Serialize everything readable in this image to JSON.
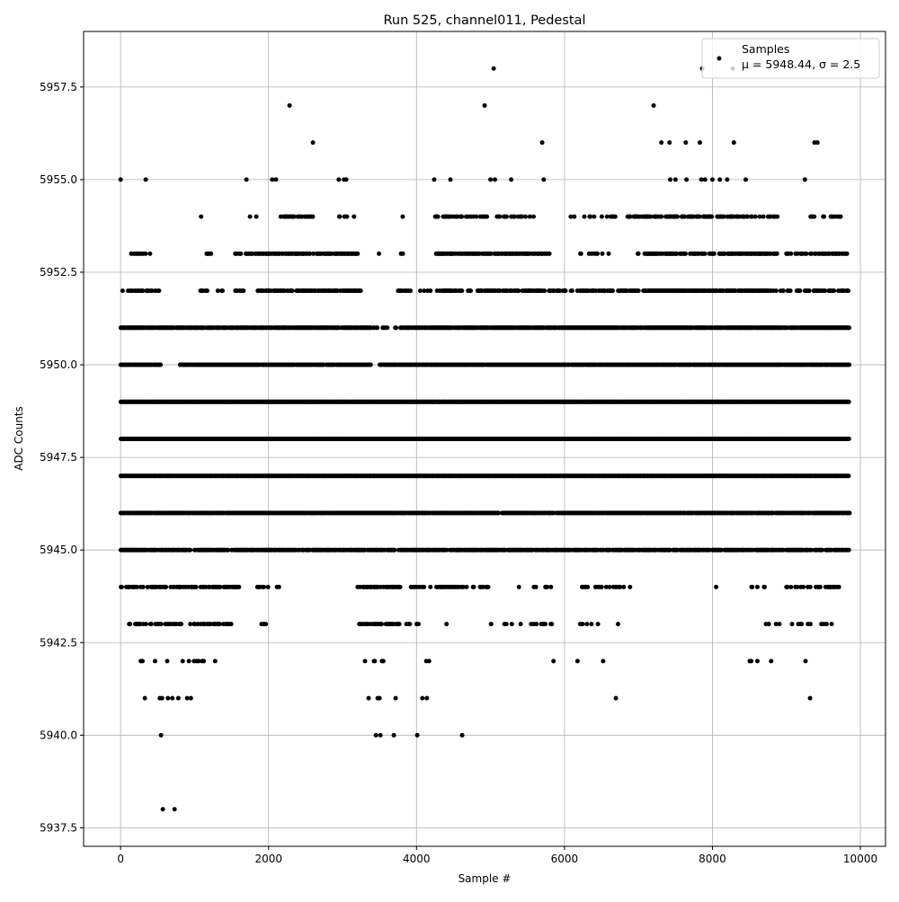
{
  "chart_data": {
    "type": "scatter",
    "title": "Run 525, channel011, Pedestal",
    "xlabel": "Sample #",
    "ylabel": "ADC Counts",
    "xlim": [
      -500,
      10340
    ],
    "ylim": [
      5937.0,
      5959.0
    ],
    "xticks": [
      0,
      2000,
      4000,
      6000,
      8000,
      10000
    ],
    "xtick_labels": [
      "0",
      "2000",
      "4000",
      "6000",
      "8000",
      "10000"
    ],
    "yticks": [
      5937.5,
      5940.0,
      5942.5,
      5945.0,
      5947.5,
      5950.0,
      5952.5,
      5955.0,
      5957.5
    ],
    "ytick_labels": [
      "5937.5",
      "5940.0",
      "5942.5",
      "5945.0",
      "5947.5",
      "5950.0",
      "5952.5",
      "5955.0",
      "5957.5"
    ],
    "grid": true,
    "legend": {
      "position": "top-right",
      "title": "Samples",
      "entry": "μ = 5948.44, σ = 2.5"
    },
    "series_color": "#000000",
    "sample_step": 12,
    "level_segments": [
      {
        "level": 5954,
        "ranges": [
          [
            80,
            320,
            0.1
          ],
          [
            1050,
            1100,
            0.3
          ],
          [
            1700,
            1850,
            0.3
          ],
          [
            2150,
            2600,
            0.6
          ],
          [
            2950,
            3200,
            0.3
          ],
          [
            3750,
            3850,
            0.2
          ],
          [
            4250,
            5000,
            0.4
          ],
          [
            5000,
            5600,
            0.3
          ],
          [
            5700,
            5800,
            0.1
          ],
          [
            6000,
            6700,
            0.2
          ],
          [
            6850,
            8900,
            0.5
          ],
          [
            9300,
            9750,
            0.3
          ]
        ]
      },
      {
        "level": 5953,
        "ranges": [
          [
            0,
            400,
            0.3
          ],
          [
            1050,
            1300,
            0.1
          ],
          [
            1550,
            2000,
            0.6
          ],
          [
            2000,
            3200,
            0.7
          ],
          [
            3450,
            3950,
            0.1
          ],
          [
            4250,
            5700,
            0.7
          ],
          [
            5700,
            5800,
            0.4
          ],
          [
            6200,
            6600,
            0.2
          ],
          [
            6950,
            8900,
            0.7
          ],
          [
            9000,
            9850,
            0.5
          ]
        ]
      },
      {
        "level": 5952,
        "ranges": [
          [
            0,
            550,
            0.4
          ],
          [
            1050,
            1400,
            0.2
          ],
          [
            1550,
            1700,
            0.6
          ],
          [
            1850,
            3250,
            0.7
          ],
          [
            3750,
            4200,
            0.3
          ],
          [
            4250,
            7000,
            0.6
          ],
          [
            7050,
            8800,
            0.9
          ],
          [
            8800,
            9850,
            0.6
          ]
        ]
      },
      {
        "level": 5951,
        "ranges": [
          [
            0,
            3350,
            0.9
          ],
          [
            3350,
            3800,
            0.3
          ],
          [
            3800,
            9850,
            0.95
          ]
        ]
      },
      {
        "level": 5950,
        "ranges": [
          [
            0,
            550,
            0.9
          ],
          [
            800,
            3400,
            0.95
          ],
          [
            3500,
            9850,
            0.95
          ]
        ]
      },
      {
        "level": 5949,
        "ranges": [
          [
            0,
            9850,
            1
          ]
        ]
      },
      {
        "level": 5948,
        "ranges": [
          [
            0,
            9850,
            1
          ]
        ]
      },
      {
        "level": 5947,
        "ranges": [
          [
            0,
            9850,
            1
          ]
        ]
      },
      {
        "level": 5946,
        "ranges": [
          [
            0,
            5000,
            0.95
          ],
          [
            5000,
            9850,
            0.9
          ]
        ]
      },
      {
        "level": 5945,
        "ranges": [
          [
            0,
            9850,
            0.8
          ]
        ]
      },
      {
        "level": 5944,
        "ranges": [
          [
            0,
            1600,
            0.6
          ],
          [
            1800,
            2150,
            0.1
          ],
          [
            3200,
            3800,
            0.6
          ],
          [
            3800,
            5000,
            0.3
          ],
          [
            5200,
            6000,
            0.1
          ],
          [
            6200,
            6900,
            0.4
          ],
          [
            7350,
            7650,
            0.05
          ],
          [
            8000,
            8100,
            0.2
          ],
          [
            8500,
            8800,
            0.2
          ],
          [
            9000,
            9750,
            0.4
          ]
        ]
      },
      {
        "level": 5943,
        "ranges": [
          [
            100,
            1500,
            0.5
          ],
          [
            1900,
            2000,
            0.3
          ],
          [
            3200,
            3950,
            0.5
          ],
          [
            4000,
            4100,
            0.2
          ],
          [
            4400,
            4700,
            0.1
          ],
          [
            4900,
            6900,
            0.1
          ],
          [
            8700,
            9800,
            0.15
          ]
        ]
      },
      {
        "level": 5942,
        "ranges": [
          [
            150,
            1350,
            0.15
          ],
          [
            3300,
            3650,
            0.2
          ],
          [
            4000,
            4200,
            0.3
          ],
          [
            5800,
            6600,
            0.05
          ],
          [
            8500,
            9800,
            0.05
          ]
        ]
      }
    ],
    "isolated_points": [
      [
        571,
        5938
      ],
      [
        729,
        5938
      ],
      [
        547,
        5940
      ],
      [
        3451,
        5940
      ],
      [
        3512,
        5940
      ],
      [
        3694,
        5940
      ],
      [
        4010,
        5940
      ],
      [
        4617,
        5940
      ],
      [
        328,
        5941
      ],
      [
        530,
        5941
      ],
      [
        560,
        5941
      ],
      [
        640,
        5941
      ],
      [
        700,
        5941
      ],
      [
        780,
        5941
      ],
      [
        900,
        5941
      ],
      [
        950,
        5941
      ],
      [
        3353,
        5941
      ],
      [
        3475,
        5941
      ],
      [
        3500,
        5941
      ],
      [
        3718,
        5941
      ],
      [
        4079,
        5941
      ],
      [
        4140,
        5941
      ],
      [
        6695,
        5941
      ],
      [
        9320,
        5941
      ],
      [
        0,
        5955
      ],
      [
        340,
        5955
      ],
      [
        1701,
        5955
      ],
      [
        2050,
        5955
      ],
      [
        2100,
        5955
      ],
      [
        2950,
        5955
      ],
      [
        3020,
        5955
      ],
      [
        3050,
        5955
      ],
      [
        4240,
        5955
      ],
      [
        4459,
        5955
      ],
      [
        5000,
        5955
      ],
      [
        5060,
        5955
      ],
      [
        5280,
        5955
      ],
      [
        5720,
        5955
      ],
      [
        7430,
        5955
      ],
      [
        7500,
        5955
      ],
      [
        7650,
        5955
      ],
      [
        7850,
        5955
      ],
      [
        7900,
        5955
      ],
      [
        8000,
        5955
      ],
      [
        8100,
        5955
      ],
      [
        8200,
        5955
      ],
      [
        8450,
        5955
      ],
      [
        9250,
        5955
      ],
      [
        2600,
        5956
      ],
      [
        5699,
        5956
      ],
      [
        7310,
        5956
      ],
      [
        7420,
        5956
      ],
      [
        7640,
        5956
      ],
      [
        7830,
        5956
      ],
      [
        8290,
        5956
      ],
      [
        9380,
        5956
      ],
      [
        9420,
        5956
      ],
      [
        2284,
        5957
      ],
      [
        4921,
        5957
      ],
      [
        7205,
        5957
      ],
      [
        5043,
        5958
      ],
      [
        7862,
        5958
      ],
      [
        8275,
        5958
      ]
    ]
  }
}
